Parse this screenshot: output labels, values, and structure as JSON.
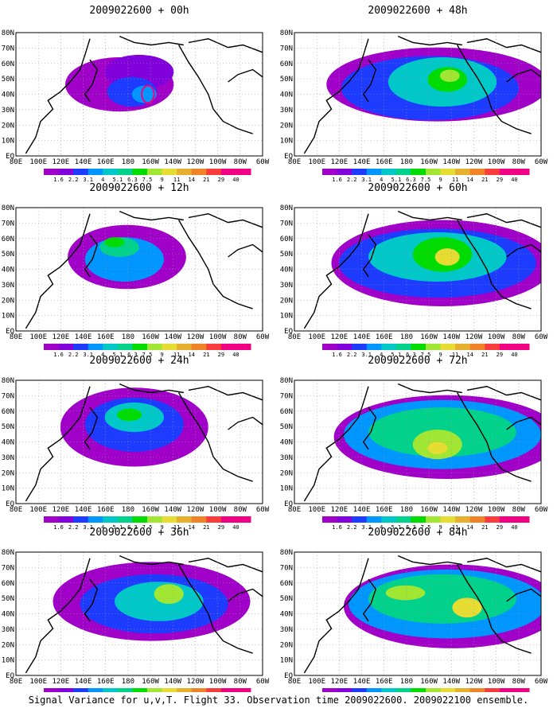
{
  "caption": "Signal Variance for u,v,T. Flight 33. Observation time 2009022600. 2009022100 ensemble.",
  "lat_labels": [
    "80N",
    "70N",
    "60N",
    "50N",
    "40N",
    "30N",
    "20N",
    "10N",
    "EQ"
  ],
  "lon_labels": [
    "80E",
    "100E",
    "120E",
    "140E",
    "160E",
    "180",
    "160W",
    "140W",
    "120W",
    "100W",
    "80W",
    "60W"
  ],
  "colorbar": {
    "labels": [
      "1.6",
      "2.2",
      "3.1",
      "4",
      "5.1",
      "6.3",
      "7.5",
      "9",
      "11",
      "14",
      "21",
      "29",
      "40"
    ],
    "colors": [
      "#a000c8",
      "#8200dc",
      "#1e3cff",
      "#0096ff",
      "#00c8c8",
      "#00d28c",
      "#00dc00",
      "#a0e632",
      "#e6dc32",
      "#e6af2d",
      "#f08228",
      "#fa3c3c",
      "#f00082"
    ]
  },
  "panels": [
    {
      "title": "2009022600 + 00h"
    },
    {
      "title": "2009022600 + 48h"
    },
    {
      "title": "2009022600 + 12h"
    },
    {
      "title": "2009022600 + 60h"
    },
    {
      "title": "2009022600 + 24h"
    },
    {
      "title": "2009022600 + 72h"
    },
    {
      "title": "2009022600 + 36h"
    },
    {
      "title": "2009022600 + 84h"
    }
  ]
}
